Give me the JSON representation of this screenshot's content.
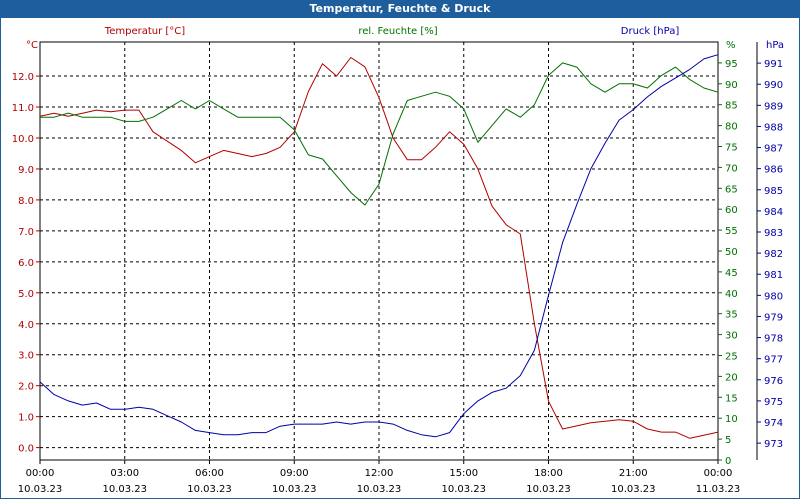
{
  "window": {
    "title": "Temperatur, Feuchte & Druck"
  },
  "colors": {
    "temp": "#b00000",
    "hum": "#007000",
    "press": "#0000a8",
    "axis": "#000000"
  },
  "chart_data": {
    "type": "line",
    "title": "Temperatur, Feuchte & Druck",
    "x_ticks": [
      {
        "time": "00:00",
        "date": "10.03.23"
      },
      {
        "time": "03:00",
        "date": "10.03.23"
      },
      {
        "time": "06:00",
        "date": "10.03.23"
      },
      {
        "time": "09:00",
        "date": "10.03.23"
      },
      {
        "time": "12:00",
        "date": "10.03.23"
      },
      {
        "time": "15:00",
        "date": "10.03.23"
      },
      {
        "time": "18:00",
        "date": "10.03.23"
      },
      {
        "time": "21:00",
        "date": "10.03.23"
      },
      {
        "time": "00:00",
        "date": "11.03.23"
      }
    ],
    "xlim": [
      0,
      24
    ],
    "axes": {
      "temp": {
        "label": "Temperatur [°C]",
        "unit": "°C",
        "ylim": [
          -0.4,
          13.1
        ],
        "ticks": [
          "0.0",
          "1.0",
          "2.0",
          "3.0",
          "4.0",
          "5.0",
          "6.0",
          "7.0",
          "8.0",
          "9.0",
          "10.0",
          "11.0",
          "12.0"
        ]
      },
      "hum": {
        "label": "rel. Feuchte [%]",
        "unit": "%",
        "ylim": [
          0,
          100
        ],
        "ticks": [
          "0",
          "5",
          "10",
          "15",
          "20",
          "25",
          "30",
          "35",
          "40",
          "45",
          "50",
          "55",
          "60",
          "65",
          "70",
          "75",
          "80",
          "85",
          "90",
          "95"
        ]
      },
      "press": {
        "label": "Druck [hPa]",
        "unit": "hPa",
        "ylim": [
          972.2,
          992.0
        ],
        "ticks": [
          "973",
          "974",
          "975",
          "976",
          "977",
          "978",
          "979",
          "980",
          "981",
          "982",
          "983",
          "984",
          "985",
          "986",
          "987",
          "988",
          "989",
          "990",
          "991"
        ]
      }
    },
    "series": [
      {
        "name": "Temperatur",
        "axis": "temp",
        "color": "#b00000",
        "x": [
          0,
          0.5,
          1,
          1.5,
          2,
          2.5,
          3,
          3.5,
          4,
          4.5,
          5,
          5.5,
          6,
          6.5,
          7,
          7.5,
          8,
          8.5,
          9,
          9.5,
          10,
          10.5,
          11,
          11.5,
          12,
          12.5,
          13,
          13.5,
          14,
          14.5,
          15,
          15.5,
          16,
          16.5,
          17,
          17.5,
          18,
          18.5,
          19,
          19.5,
          20,
          20.5,
          21,
          21.5,
          22,
          22.5,
          23,
          23.5,
          24
        ],
        "values": [
          10.7,
          10.8,
          10.7,
          10.8,
          10.9,
          10.85,
          10.9,
          10.9,
          10.2,
          9.9,
          9.6,
          9.2,
          9.4,
          9.6,
          9.5,
          9.4,
          9.5,
          9.7,
          10.2,
          11.5,
          12.4,
          12.0,
          12.6,
          12.3,
          11.3,
          10.0,
          9.3,
          9.3,
          9.7,
          10.2,
          9.8,
          9.0,
          7.8,
          7.2,
          6.9,
          4.0,
          1.5,
          0.6,
          0.7,
          0.8,
          0.85,
          0.9,
          0.85,
          0.6,
          0.5,
          0.5,
          0.3,
          0.4,
          0.5
        ]
      },
      {
        "name": "rel. Feuchte",
        "axis": "hum",
        "color": "#007000",
        "x": [
          0,
          0.5,
          1,
          1.5,
          2,
          2.5,
          3,
          3.5,
          4,
          4.5,
          5,
          5.5,
          6,
          6.5,
          7,
          7.5,
          8,
          8.5,
          9,
          9.5,
          10,
          10.5,
          11,
          11.5,
          12,
          12.5,
          13,
          13.5,
          14,
          14.5,
          15,
          15.5,
          16,
          16.5,
          17,
          17.5,
          18,
          18.5,
          19,
          19.5,
          20,
          20.5,
          21,
          21.5,
          22,
          22.5,
          23,
          23.5,
          24
        ],
        "values": [
          82,
          82,
          83,
          82,
          82,
          82,
          81,
          81,
          82,
          84,
          86,
          84,
          86,
          84,
          82,
          82,
          82,
          82,
          79,
          73,
          72,
          68,
          64,
          61,
          66,
          78,
          86,
          87,
          88,
          87,
          84,
          76,
          80,
          84,
          82,
          85,
          92,
          95,
          94,
          90,
          88,
          90,
          90,
          89,
          92,
          94,
          91,
          89,
          88
        ]
      },
      {
        "name": "Druck",
        "axis": "press",
        "color": "#0000a8",
        "x": [
          0,
          0.5,
          1,
          1.5,
          2,
          2.5,
          3,
          3.5,
          4,
          4.5,
          5,
          5.5,
          6,
          6.5,
          7,
          7.5,
          8,
          8.5,
          9,
          9.5,
          10,
          10.5,
          11,
          11.5,
          12,
          12.5,
          13,
          13.5,
          14,
          14.5,
          15,
          15.5,
          16,
          16.5,
          17,
          17.5,
          18,
          18.5,
          19,
          19.5,
          20,
          20.5,
          21,
          21.5,
          22,
          22.5,
          23,
          23.5,
          24
        ],
        "values": [
          975.9,
          975.3,
          975.0,
          974.8,
          974.9,
          974.6,
          974.6,
          974.7,
          974.6,
          974.3,
          974.0,
          973.6,
          973.5,
          973.4,
          973.4,
          973.5,
          973.5,
          973.8,
          973.9,
          973.9,
          973.9,
          974.0,
          973.9,
          974.0,
          974.0,
          973.9,
          973.6,
          973.4,
          973.3,
          973.5,
          974.4,
          975.0,
          975.4,
          975.6,
          976.2,
          977.4,
          980.0,
          982.5,
          984.3,
          986.0,
          987.2,
          988.3,
          988.8,
          989.4,
          989.9,
          990.3,
          990.7,
          991.2,
          991.4
        ]
      }
    ]
  }
}
